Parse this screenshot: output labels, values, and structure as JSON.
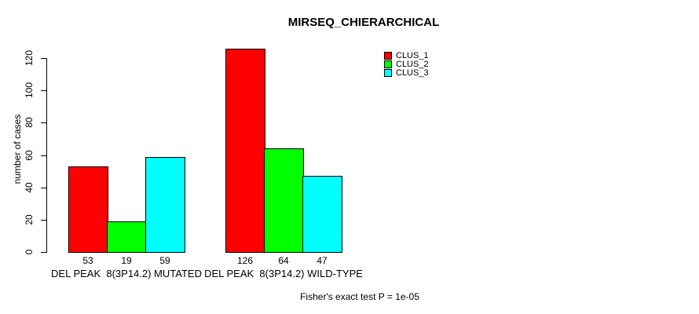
{
  "chart_data": {
    "type": "bar",
    "title": "MIRSEQ_CHIERARCHICAL",
    "ylabel": "number of cases",
    "xlabel": "",
    "categories": [
      "DEL PEAK  8(3P14.2) MUTATED",
      "DEL PEAK  8(3P14.2) WILD-TYPE"
    ],
    "series": [
      {
        "name": "CLUS_1",
        "color": "#ff0000",
        "values": [
          53,
          126
        ]
      },
      {
        "name": "CLUS_2",
        "color": "#00ff00",
        "values": [
          19,
          64
        ]
      },
      {
        "name": "CLUS_3",
        "color": "#00ffff",
        "values": [
          59,
          47
        ]
      }
    ],
    "bar_value_labels": [
      [
        53,
        19,
        59
      ],
      [
        126,
        64,
        47
      ]
    ],
    "yticks": [
      0,
      20,
      40,
      60,
      80,
      100,
      120
    ],
    "ylim": [
      0,
      130
    ],
    "grid": false,
    "legend_position": "top-right",
    "axis_color": "#000000",
    "bar_border_color": "#000000",
    "footnote": "Fisher's exact test P = 1e-05"
  }
}
